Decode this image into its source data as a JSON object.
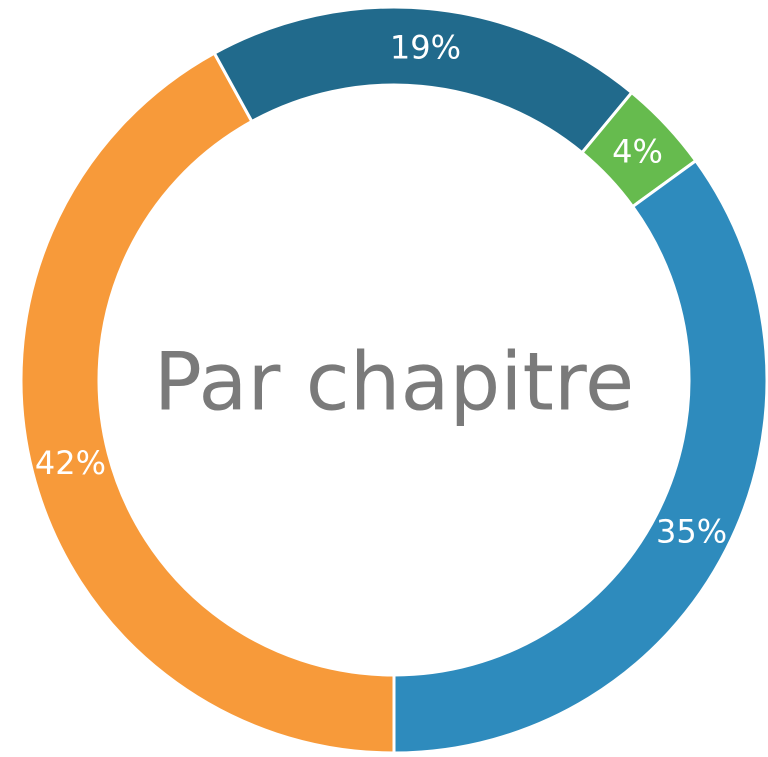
{
  "chart_data": {
    "type": "donut",
    "title": "Par chapitre",
    "values": [
      42,
      19,
      4,
      35
    ],
    "value_labels": [
      "42%",
      "19%",
      "4%",
      "35%"
    ],
    "colors": [
      "#f79a3a",
      "#216a8c",
      "#66bb4e",
      "#2e8bbd"
    ]
  }
}
